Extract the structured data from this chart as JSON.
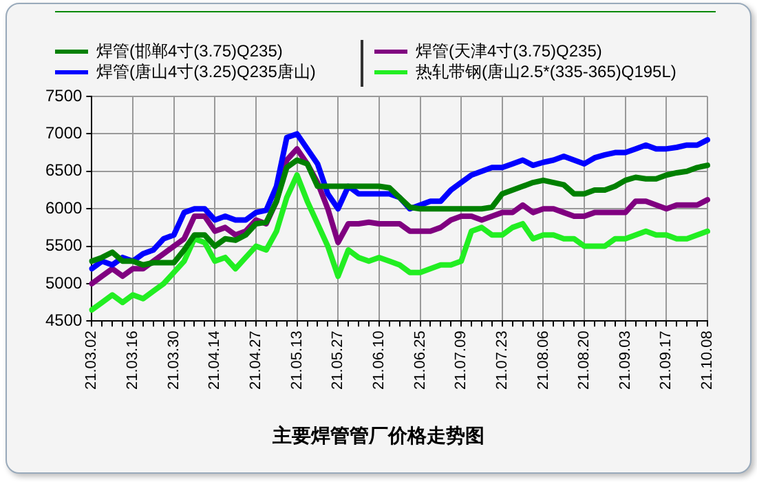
{
  "chart_data": {
    "type": "line",
    "title": "主要焊管管厂价格走势图",
    "categories": [
      "21.03.02",
      null,
      null,
      null,
      "21.03.16",
      null,
      null,
      null,
      "21.03.30",
      null,
      null,
      null,
      "21.04.14",
      null,
      null,
      null,
      "21.04.27",
      null,
      null,
      null,
      "21.05.13",
      null,
      null,
      null,
      "21.05.27",
      null,
      null,
      null,
      "21.06.10",
      null,
      null,
      null,
      "21.06.25",
      null,
      null,
      null,
      "21.07.09",
      null,
      null,
      null,
      "21.07.23",
      null,
      null,
      null,
      "21.08.06",
      null,
      null,
      null,
      "21.08.20",
      null,
      null,
      null,
      "21.09.03",
      null,
      null,
      null,
      "21.09.17",
      null,
      null,
      null,
      "21.10.08"
    ],
    "series": [
      {
        "name": "焊管(邯郸4寸(3.75)Q235)",
        "color": "#008000",
        "values": [
          5300,
          5350,
          5420,
          5300,
          5300,
          5250,
          5280,
          5280,
          5280,
          5450,
          5650,
          5650,
          5500,
          5600,
          5580,
          5650,
          5800,
          5820,
          6100,
          6550,
          6650,
          6600,
          6300,
          6300,
          6300,
          6300,
          6300,
          6300,
          6300,
          6280,
          6150,
          6020,
          6000,
          6000,
          6000,
          6000,
          6000,
          6000,
          6000,
          6020,
          6200,
          6250,
          6300,
          6350,
          6380,
          6350,
          6320,
          6200,
          6200,
          6250,
          6250,
          6300,
          6380,
          6420,
          6400,
          6400,
          6450,
          6480,
          6500,
          6550,
          6580
        ]
      },
      {
        "name": "焊管(唐山4寸(3.25)Q235唐山)",
        "color": "#0000ff",
        "values": [
          5200,
          5300,
          5250,
          5350,
          5300,
          5400,
          5450,
          5600,
          5650,
          5950,
          6000,
          6000,
          5850,
          5900,
          5850,
          5850,
          5950,
          5980,
          6300,
          6950,
          7000,
          6800,
          6600,
          6200,
          6000,
          6300,
          6200,
          6200,
          6200,
          6200,
          6150,
          6000,
          6050,
          6100,
          6100,
          6250,
          6350,
          6450,
          6500,
          6550,
          6550,
          6600,
          6650,
          6580,
          6620,
          6650,
          6700,
          6650,
          6600,
          6680,
          6720,
          6750,
          6750,
          6800,
          6850,
          6800,
          6800,
          6820,
          6850,
          6850,
          6920
        ]
      },
      {
        "name": "焊管(天津4寸(3.75)Q235)",
        "color": "#800080",
        "values": [
          5000,
          5100,
          5200,
          5100,
          5200,
          5200,
          5300,
          5400,
          5500,
          5600,
          5900,
          5900,
          5700,
          5750,
          5650,
          5700,
          5850,
          5800,
          6100,
          6650,
          6800,
          6600,
          6350,
          6000,
          5550,
          5800,
          5800,
          5820,
          5800,
          5800,
          5800,
          5700,
          5700,
          5700,
          5750,
          5850,
          5900,
          5900,
          5850,
          5900,
          5950,
          5950,
          6050,
          5950,
          6000,
          6000,
          5950,
          5900,
          5900,
          5950,
          5950,
          5950,
          5950,
          6100,
          6100,
          6050,
          6000,
          6050,
          6050,
          6050,
          6120
        ]
      },
      {
        "name": "热轧带钢(唐山2.5*(335-365)Q195L)",
        "color": "#22ee22",
        "values": [
          4650,
          4750,
          4850,
          4750,
          4850,
          4800,
          4900,
          5000,
          5150,
          5300,
          5600,
          5550,
          5300,
          5350,
          5200,
          5350,
          5500,
          5450,
          5700,
          6150,
          6450,
          6100,
          5800,
          5500,
          5100,
          5450,
          5350,
          5300,
          5350,
          5300,
          5250,
          5150,
          5150,
          5200,
          5250,
          5250,
          5300,
          5700,
          5750,
          5650,
          5650,
          5750,
          5800,
          5600,
          5650,
          5650,
          5600,
          5600,
          5500,
          5500,
          5500,
          5600,
          5600,
          5650,
          5700,
          5650,
          5650,
          5600,
          5600,
          5650,
          5700
        ]
      }
    ],
    "ylim": [
      4500,
      7500
    ],
    "yticks": [
      4500,
      5000,
      5500,
      6000,
      6500,
      7000,
      7500
    ],
    "grid": true,
    "legend": "top",
    "marker": "none",
    "line_style": "solid"
  }
}
